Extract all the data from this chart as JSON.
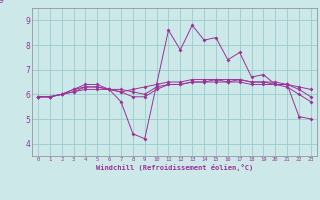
{
  "background_color": "#cce8e8",
  "line_color": "#993399",
  "grid_color": "#99cccc",
  "xlabel": "Windchill (Refroidissement éolien,°C)",
  "ylim": [
    3.5,
    9.5
  ],
  "xlim": [
    -0.5,
    23.5
  ],
  "yticks": [
    4,
    5,
    6,
    7,
    8,
    9
  ],
  "xticks": [
    0,
    1,
    2,
    3,
    4,
    5,
    6,
    7,
    8,
    9,
    10,
    11,
    12,
    13,
    14,
    15,
    16,
    17,
    18,
    19,
    20,
    21,
    22,
    23
  ],
  "series": [
    [
      5.9,
      5.9,
      6.0,
      6.2,
      6.4,
      6.4,
      6.2,
      5.7,
      4.4,
      4.2,
      6.4,
      8.6,
      7.8,
      8.8,
      8.2,
      8.3,
      7.4,
      7.7,
      6.7,
      6.8,
      6.4,
      6.4,
      5.1,
      5.0
    ],
    [
      5.9,
      5.9,
      6.0,
      6.2,
      6.3,
      6.3,
      6.2,
      6.1,
      6.2,
      6.3,
      6.4,
      6.5,
      6.5,
      6.6,
      6.6,
      6.6,
      6.6,
      6.6,
      6.5,
      6.5,
      6.4,
      6.4,
      6.3,
      6.2
    ],
    [
      5.9,
      5.9,
      6.0,
      6.1,
      6.2,
      6.2,
      6.2,
      6.2,
      6.1,
      6.0,
      6.3,
      6.4,
      6.4,
      6.5,
      6.5,
      6.6,
      6.5,
      6.6,
      6.5,
      6.5,
      6.5,
      6.4,
      6.2,
      5.9
    ],
    [
      5.9,
      5.9,
      6.0,
      6.1,
      6.3,
      6.3,
      6.2,
      6.1,
      5.9,
      5.9,
      6.2,
      6.4,
      6.4,
      6.5,
      6.5,
      6.5,
      6.5,
      6.5,
      6.4,
      6.4,
      6.4,
      6.3,
      6.0,
      5.7
    ]
  ]
}
